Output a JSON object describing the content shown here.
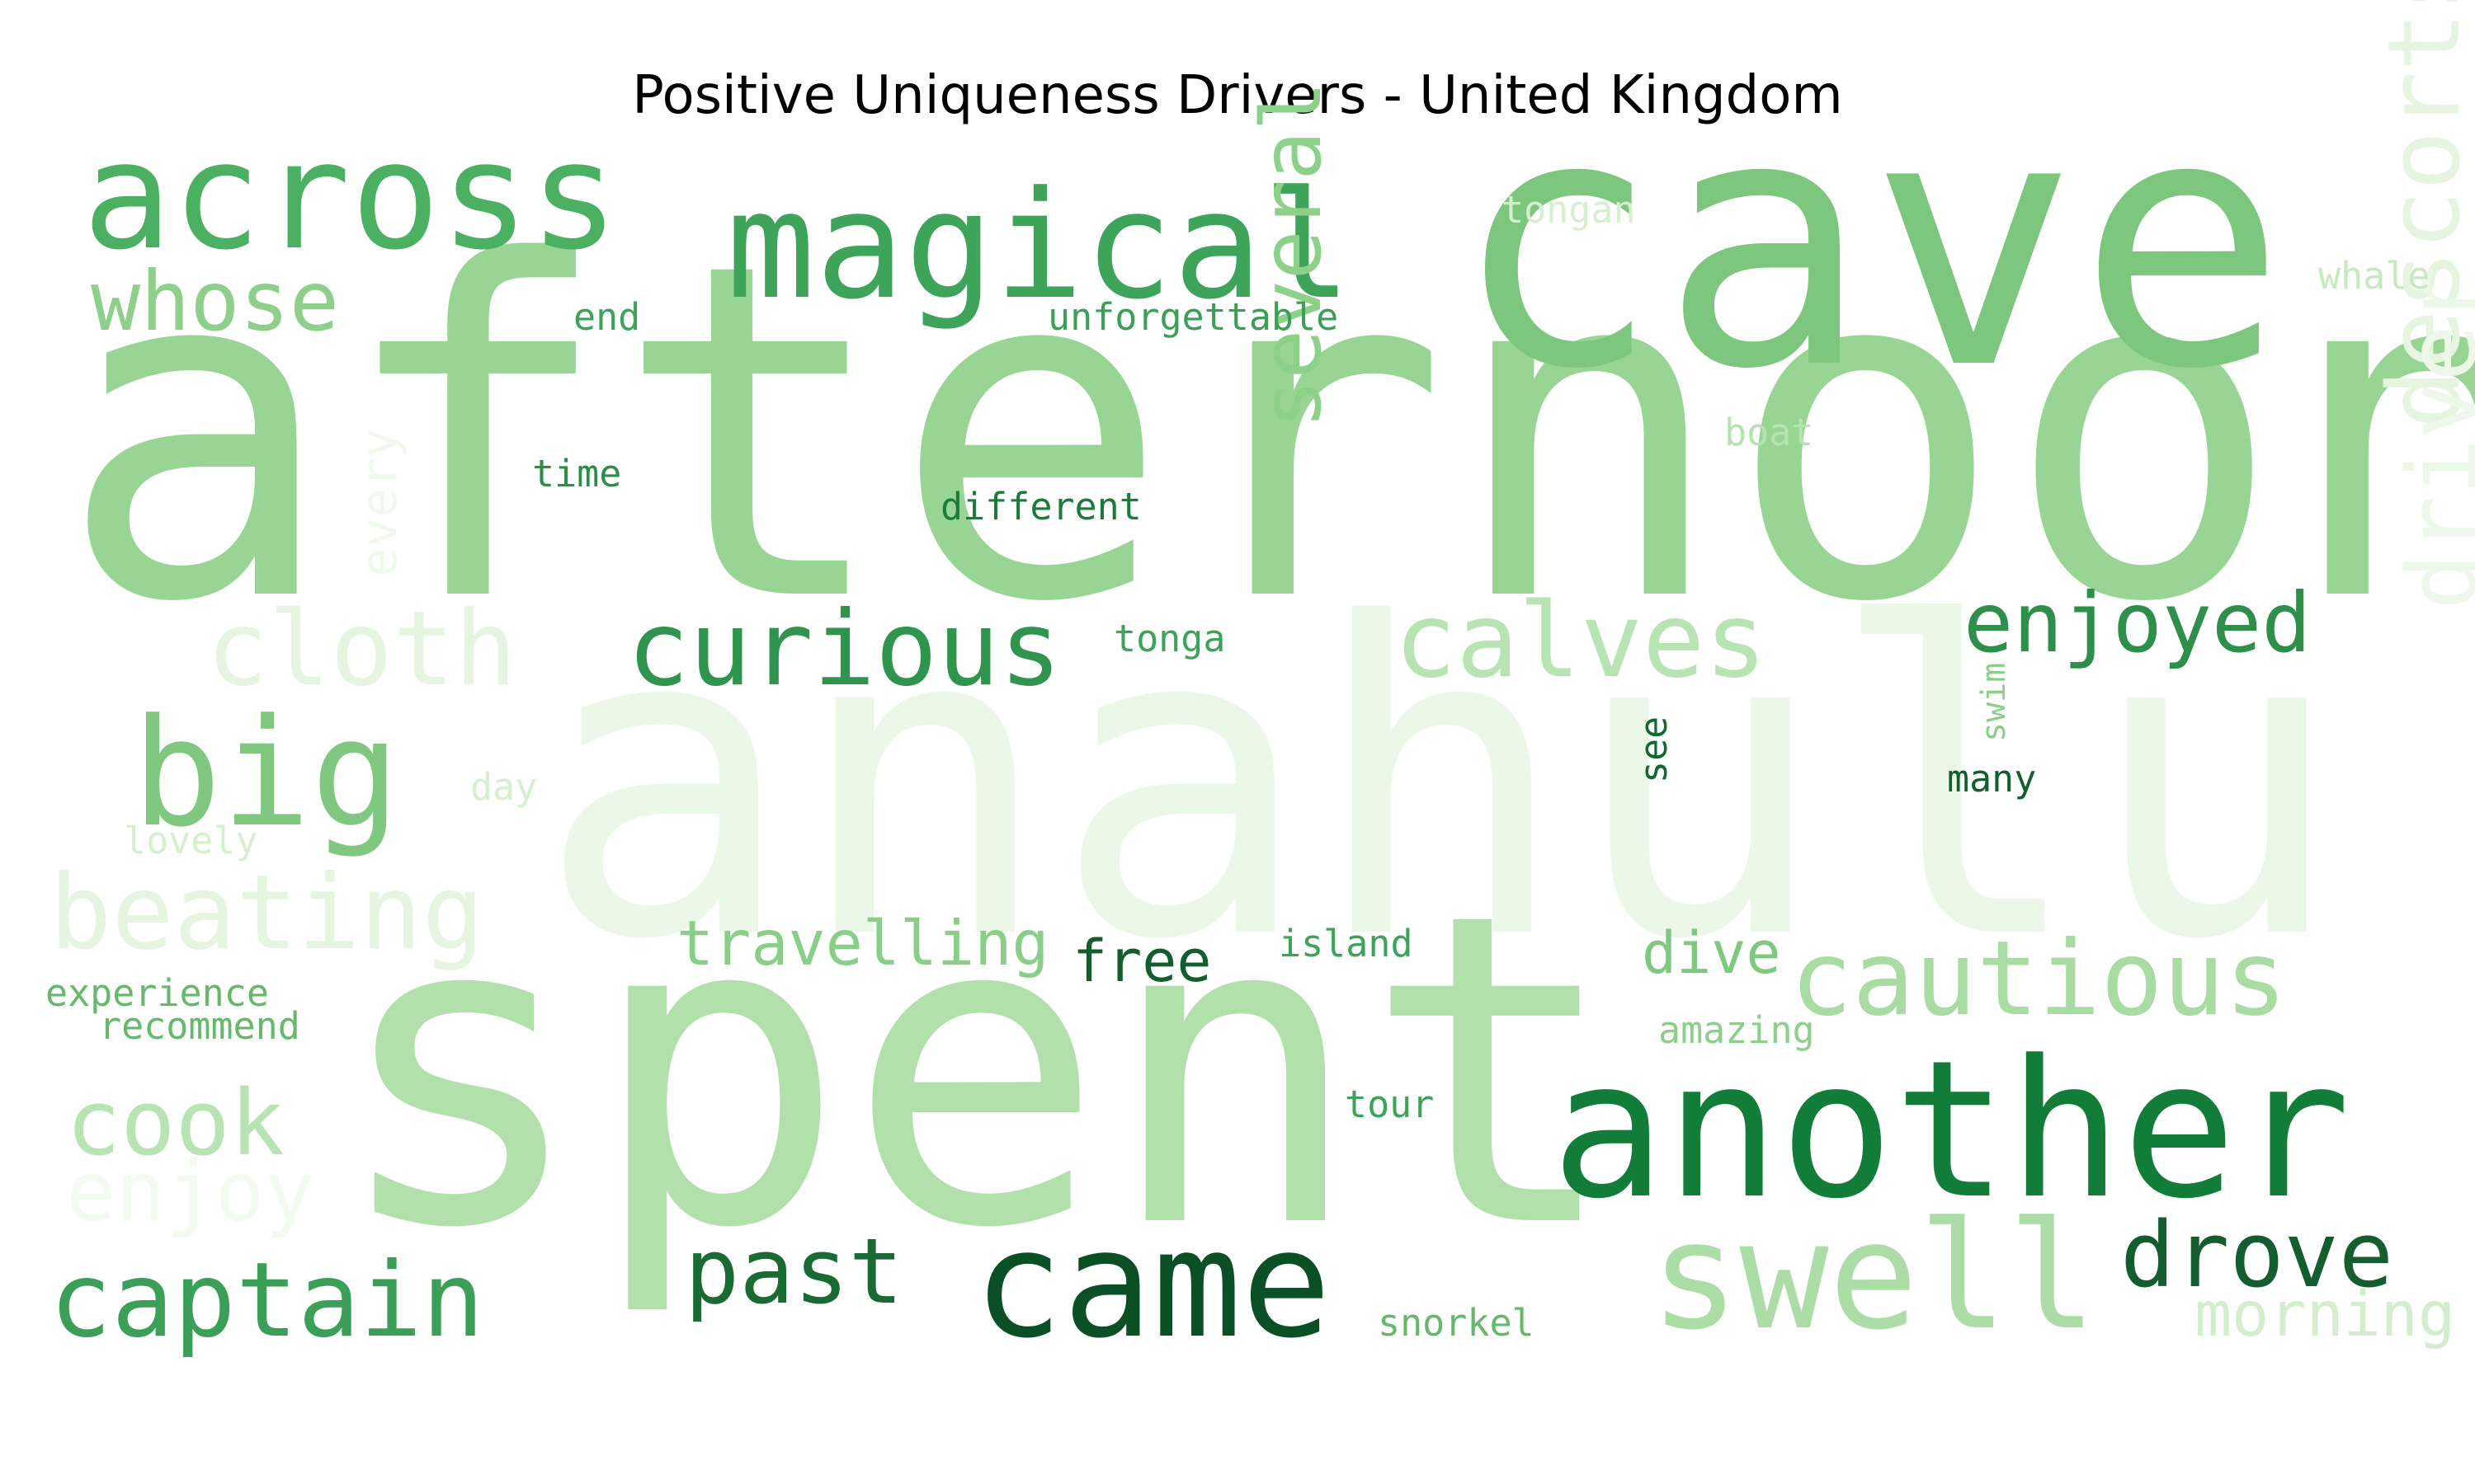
{
  "chart_data": {
    "type": "wordcloud",
    "title": "Positive Uniqueness Drivers - United Kingdom",
    "palette": "Greens",
    "words": [
      {
        "text": "afternoon",
        "weight": 1.0,
        "color": "#98d594",
        "rotate": false
      },
      {
        "text": "anahulu",
        "weight": 0.95,
        "color": "#ebf7e7",
        "rotate": false
      },
      {
        "text": "spent",
        "weight": 0.9,
        "color": "#b2e0ab",
        "rotate": false
      },
      {
        "text": "cave",
        "weight": 0.8,
        "color": "#7cc67d",
        "rotate": false
      },
      {
        "text": "another",
        "weight": 0.52,
        "color": "#127c39",
        "rotate": false
      },
      {
        "text": "magical",
        "weight": 0.46,
        "color": "#3da45a",
        "rotate": false
      },
      {
        "text": "across",
        "weight": 0.44,
        "color": "#4bb062",
        "rotate": false
      },
      {
        "text": "came",
        "weight": 0.44,
        "color": "#0a4f25",
        "rotate": false
      },
      {
        "text": "swell",
        "weight": 0.43,
        "color": "#acdda6",
        "rotate": false
      },
      {
        "text": "big",
        "weight": 0.41,
        "color": "#80c87f",
        "rotate": false
      },
      {
        "text": "descorts",
        "weight": 0.32,
        "color": "#e5f5e0",
        "rotate": true
      },
      {
        "text": "driver",
        "weight": 0.3,
        "color": "#edf8ea",
        "rotate": true
      },
      {
        "text": "cloth",
        "weight": 0.3,
        "color": "#e5f5e0",
        "rotate": false
      },
      {
        "text": "curious",
        "weight": 0.3,
        "color": "#2f944d",
        "rotate": false
      },
      {
        "text": "calves",
        "weight": 0.3,
        "color": "#b8e3b2",
        "rotate": false
      },
      {
        "text": "several",
        "weight": 0.3,
        "color": "#8cd08a",
        "rotate": true
      },
      {
        "text": "beating",
        "weight": 0.3,
        "color": "#e5f5e0",
        "rotate": false
      },
      {
        "text": "cautious",
        "weight": 0.3,
        "color": "#a8dca2",
        "rotate": false
      },
      {
        "text": "captain",
        "weight": 0.3,
        "color": "#3c9f57",
        "rotate": false
      },
      {
        "text": "past",
        "weight": 0.29,
        "color": "#196a33",
        "rotate": false
      },
      {
        "text": "drove",
        "weight": 0.29,
        "color": "#145d2e",
        "rotate": false
      },
      {
        "text": "whose",
        "weight": 0.27,
        "color": "#8ed08b",
        "rotate": false
      },
      {
        "text": "cook",
        "weight": 0.27,
        "color": "#b8e3b2",
        "rotate": false
      },
      {
        "text": "enjoy",
        "weight": 0.25,
        "color": "#f3faf0",
        "rotate": false
      },
      {
        "text": "enjoyed",
        "weight": 0.22,
        "color": "#2d8f4a",
        "rotate": false
      },
      {
        "text": "morning",
        "weight": 0.18,
        "color": "#d3eecd",
        "rotate": false
      },
      {
        "text": "travelling",
        "weight": 0.17,
        "color": "#8acf88",
        "rotate": false
      },
      {
        "text": "free",
        "weight": 0.16,
        "color": "#145d2e",
        "rotate": false
      },
      {
        "text": "dive",
        "weight": 0.16,
        "color": "#7fc87f",
        "rotate": false
      },
      {
        "text": "every",
        "weight": 0.13,
        "color": "#f1f9ef",
        "rotate": true
      },
      {
        "text": "unforgettable",
        "weight": 0.11,
        "color": "#3c9f57",
        "rotate": false
      },
      {
        "text": "different",
        "weight": 0.11,
        "color": "#1c7a3b",
        "rotate": false
      },
      {
        "text": "snorkel",
        "weight": 0.11,
        "color": "#66b96a",
        "rotate": false
      },
      {
        "text": "island",
        "weight": 0.11,
        "color": "#3ea35a",
        "rotate": false
      },
      {
        "text": "tongan",
        "weight": 0.11,
        "color": "#d5efcf",
        "rotate": false
      },
      {
        "text": "whale",
        "weight": 0.11,
        "color": "#c7e9c0",
        "rotate": false
      },
      {
        "text": "boat",
        "weight": 0.11,
        "color": "#b7e2b1",
        "rotate": false
      },
      {
        "text": "tonga",
        "weight": 0.1,
        "color": "#3ea35a",
        "rotate": false
      },
      {
        "text": "time",
        "weight": 0.1,
        "color": "#2a8d48",
        "rotate": false
      },
      {
        "text": "end",
        "weight": 0.1,
        "color": "#3ea35a",
        "rotate": false
      },
      {
        "text": "day",
        "weight": 0.1,
        "color": "#d5efcf",
        "rotate": false
      },
      {
        "text": "lovely",
        "weight": 0.1,
        "color": "#d5efcf",
        "rotate": false
      },
      {
        "text": "experience",
        "weight": 0.1,
        "color": "#66b96a",
        "rotate": false
      },
      {
        "text": "recommend",
        "weight": 0.1,
        "color": "#66b96a",
        "rotate": false
      },
      {
        "text": "amazing",
        "weight": 0.1,
        "color": "#8ccf8a",
        "rotate": false
      },
      {
        "text": "tour",
        "weight": 0.1,
        "color": "#3ea35a",
        "rotate": false
      },
      {
        "text": "many",
        "weight": 0.1,
        "color": "#145d2e",
        "rotate": false
      },
      {
        "text": "see",
        "weight": 0.1,
        "color": "#0f6a30",
        "rotate": true
      },
      {
        "text": "swim",
        "weight": 0.09,
        "color": "#8ccf8a",
        "rotate": true
      }
    ]
  }
}
